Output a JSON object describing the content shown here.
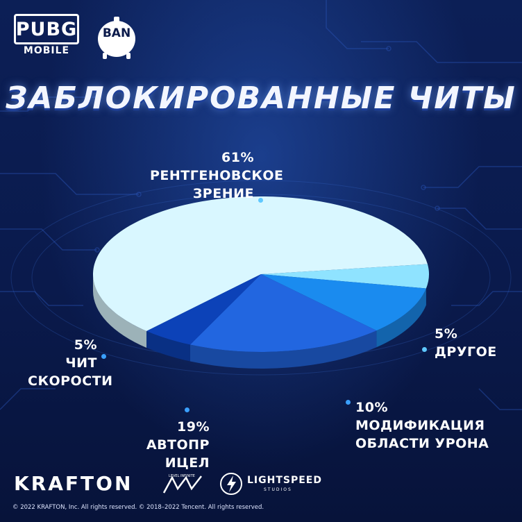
{
  "header": {
    "pubg_word": "PUBG",
    "pubg_sub": "MOBILE",
    "ban_badge": "BAN",
    "title": "ЗАБЛОКИРОВАННЫЕ ЧИТЫ"
  },
  "chart_data": {
    "type": "pie",
    "title": "ЗАБЛОКИРОВАННЫЕ ЧИТЫ",
    "slices": [
      {
        "label": "РЕНТГЕНОВСКОЕ ЗРЕНИЕ",
        "value": 61,
        "value_label": "61%",
        "color": "#d9f7ff"
      },
      {
        "label": "ДРУГОЕ",
        "value": 5,
        "value_label": "5%",
        "color": "#8fe3ff"
      },
      {
        "label": "МОДИФИКАЦИЯ ОБЛАСТИ УРОНА",
        "value": 10,
        "value_label": "10%",
        "color": "#1a8bef"
      },
      {
        "label": "АВТОПР ИЦЕЛ",
        "value": 19,
        "value_label": "19%",
        "color": "#2266e0"
      },
      {
        "label": "ЧИТ СКОРОСТИ",
        "value": 5,
        "value_label": "5%",
        "color": "#0c42b8"
      }
    ]
  },
  "labels": {
    "xray_pct": "61%",
    "xray_l1": "РЕНТГЕНОВСКОЕ",
    "xray_l2": "ЗРЕНИЕ",
    "other_pct": "5%",
    "other_l1": "ДРУГОЕ",
    "dmg_pct": "10%",
    "dmg_l1": "МОДИФИКАЦИЯ",
    "dmg_l2": "ОБЛАСТИ УРОНА",
    "aim_pct": "19%",
    "aim_l1": "АВТОПР ИЦЕЛ",
    "speed_pct": "5%",
    "speed_l1": "ЧИТ",
    "speed_l2": "СКОРОСТИ"
  },
  "footer": {
    "krafton": "KRAFTON",
    "level_infinite_small": "LEVEL INFINITE",
    "lightspeed": "LIGHTSPEED",
    "lightspeed_sub": "STUDIOS",
    "copyright": "© 2022 KRAFTON, Inc. All rights reserved.    ©  2018–2022 Tencent. All rights reserved."
  },
  "colors": {
    "background": "#0b1a4a",
    "dot": "#5fc8ff"
  }
}
